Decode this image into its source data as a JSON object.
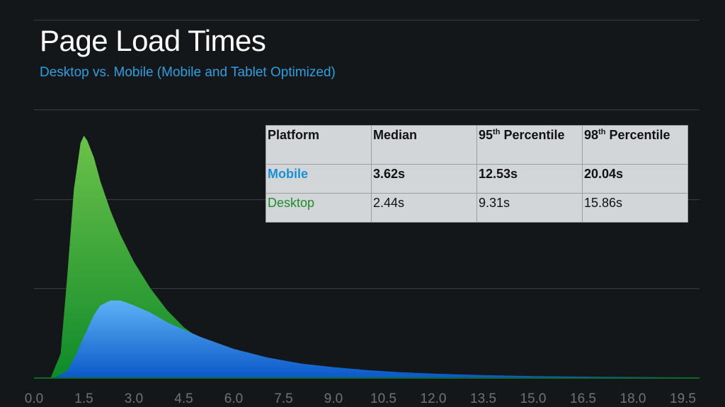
{
  "header": {
    "title": "Page Load Times",
    "subtitle": "Desktop vs. Mobile (Mobile and Tablet Optimized)"
  },
  "table": {
    "headers": [
      "Platform",
      "Median",
      "95",
      "98"
    ],
    "header_sup": "th",
    "header_suffix": "Percentile",
    "rows": [
      {
        "platform": "Mobile",
        "median": "3.62s",
        "p95": "12.53s",
        "p98": "20.04s"
      },
      {
        "platform": "Desktop",
        "median": "2.44s",
        "p95": "9.31s",
        "p98": "15.86s"
      }
    ]
  },
  "chart_data": {
    "type": "area",
    "xlim": [
      0,
      20
    ],
    "x_ticks": [
      "0.0",
      "1.5",
      "3.0",
      "4.5",
      "6.0",
      "7.5",
      "9.0",
      "10.5",
      "12.0",
      "13.5",
      "15.0",
      "16.5",
      "18.0",
      "19.5"
    ],
    "grid": true,
    "series": [
      {
        "color": "#3fa83f",
        "x": [
          0.5,
          0.8,
          1.0,
          1.2,
          1.4,
          1.5,
          1.6,
          1.8,
          2.0,
          2.3,
          2.6,
          3.0,
          3.5,
          4.0,
          4.5,
          5.0,
          6.0,
          7.0,
          8.0,
          9.0,
          10.0,
          11.0,
          12.0,
          13.5,
          15.0,
          17.0,
          19.5
        ],
        "values": [
          0.0,
          0.1,
          0.42,
          0.78,
          0.97,
          1.0,
          0.98,
          0.91,
          0.81,
          0.69,
          0.59,
          0.48,
          0.37,
          0.28,
          0.21,
          0.16,
          0.1,
          0.065,
          0.045,
          0.03,
          0.02,
          0.015,
          0.011,
          0.007,
          0.005,
          0.003,
          0.002
        ]
      },
      {
        "color": "#3b8fe0",
        "x": [
          0.6,
          1.0,
          1.2,
          1.5,
          1.8,
          2.0,
          2.3,
          2.6,
          3.0,
          3.5,
          4.0,
          5.0,
          6.0,
          7.0,
          8.0,
          9.0,
          10.0,
          11.0,
          12.0,
          13.5,
          15.0,
          17.0,
          19.5
        ],
        "values": [
          0.0,
          0.03,
          0.08,
          0.17,
          0.26,
          0.3,
          0.32,
          0.32,
          0.3,
          0.27,
          0.23,
          0.17,
          0.12,
          0.085,
          0.06,
          0.045,
          0.033,
          0.024,
          0.018,
          0.012,
          0.008,
          0.005,
          0.003
        ]
      }
    ]
  }
}
